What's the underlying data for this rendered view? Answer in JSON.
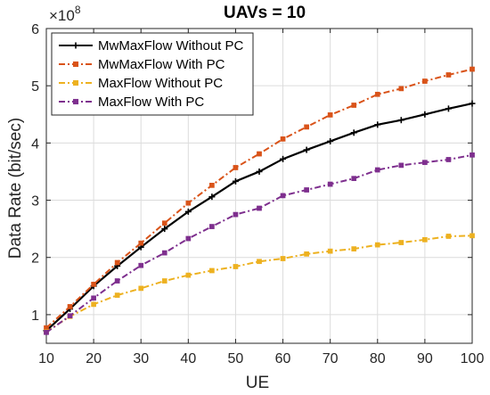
{
  "chart_data": {
    "type": "line",
    "title": "UAVs = 10",
    "xlabel": "UE",
    "ylabel": "Data Rate (bit/sec)",
    "y_exponent_base": "×10",
    "y_exponent_power": "8",
    "xlim": [
      10,
      100
    ],
    "ylim": [
      0.5,
      6
    ],
    "xticks": [
      10,
      20,
      30,
      40,
      50,
      60,
      70,
      80,
      90,
      100
    ],
    "yticks": [
      1,
      2,
      3,
      4,
      5,
      6
    ],
    "grid": true,
    "legend_position": "top-left",
    "x": [
      10,
      15,
      20,
      25,
      30,
      35,
      40,
      45,
      50,
      55,
      60,
      65,
      70,
      75,
      80,
      85,
      90,
      95,
      100
    ],
    "series": [
      {
        "name": "MwMaxFlow Without PC",
        "color": "#000000",
        "line_style": "solid",
        "marker": "plus",
        "values": [
          0.72,
          1.1,
          1.5,
          1.85,
          2.18,
          2.5,
          2.8,
          3.06,
          3.33,
          3.5,
          3.72,
          3.88,
          4.03,
          4.18,
          4.32,
          4.4,
          4.5,
          4.6,
          4.69
        ]
      },
      {
        "name": "MwMaxFlow With PC",
        "color": "#D95319",
        "line_style": "dashdot",
        "marker": "square",
        "values": [
          0.77,
          1.14,
          1.53,
          1.91,
          2.25,
          2.6,
          2.95,
          3.26,
          3.57,
          3.81,
          4.07,
          4.28,
          4.49,
          4.66,
          4.85,
          4.95,
          5.08,
          5.19,
          5.29
        ]
      },
      {
        "name": "MaxFlow Without PC",
        "color": "#EDB120",
        "line_style": "dashdot",
        "marker": "square",
        "values": [
          0.7,
          0.97,
          1.18,
          1.34,
          1.46,
          1.59,
          1.69,
          1.77,
          1.84,
          1.93,
          1.98,
          2.06,
          2.11,
          2.15,
          2.22,
          2.26,
          2.31,
          2.37,
          2.38
        ]
      },
      {
        "name": "MaxFlow With PC",
        "color": "#7E2F8E",
        "line_style": "dashdot",
        "marker": "square",
        "values": [
          0.69,
          0.98,
          1.29,
          1.59,
          1.86,
          2.08,
          2.33,
          2.54,
          2.75,
          2.86,
          3.08,
          3.18,
          3.28,
          3.38,
          3.53,
          3.61,
          3.66,
          3.71,
          3.79
        ]
      }
    ]
  }
}
